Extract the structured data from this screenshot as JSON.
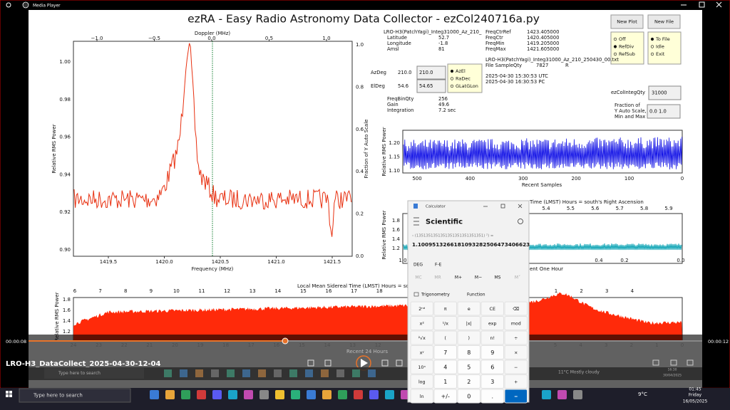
{
  "window": {
    "title": "Media Player"
  },
  "app": {
    "title": "ezRA - Easy Radio Astronomy Data Collector - ezCol240716a.py",
    "new_plot": "New Plot",
    "new_file": "New File",
    "ref_options": [
      "Off",
      "RefDiv",
      "RefSub"
    ],
    "file_options": [
      "To File",
      "Idle",
      "Exit"
    ],
    "coord_options": [
      "AzEl",
      "RaDec",
      "GLatGLon"
    ],
    "station_name": "LRO-H3(PatchYagi)_Integ31000_Az_210_",
    "station_rows": [
      [
        "Latitude",
        "52.7"
      ],
      [
        "Longitude",
        "-1.8"
      ],
      [
        "Amsl",
        "81"
      ]
    ],
    "freq_rows": [
      [
        "FreqCtrRef",
        "1423.405000"
      ],
      [
        "FreqCtr",
        "1420.405000"
      ],
      [
        "FreqMin",
        "1419.205000"
      ],
      [
        "FreqMax",
        "1421.605000"
      ]
    ],
    "file_name": "LRO-H3(PatchYagi)_Integ31000_Az_210_250430_00.txt",
    "file_sample": [
      "File SampleQty",
      "7827",
      "R"
    ],
    "az": [
      "AzDeg",
      "210.0",
      "210.0"
    ],
    "el": [
      "ElDeg",
      "54.6",
      "54.65"
    ],
    "times": [
      "2025-04-30  15:30:53  UTC",
      "2025-04-30  16:30:53  PC"
    ],
    "integ_label": "ezColIntegQty",
    "integ_value": "31000",
    "settings": [
      [
        "FreqBinQty",
        "256"
      ],
      [
        "Gain",
        "49.6"
      ],
      [
        "Integration",
        "7.2  sec"
      ]
    ],
    "yscale_label": [
      "Fraction of",
      "Y Auto Scale,",
      "Min and Max"
    ],
    "yscale_value": "0.0   1.0",
    "spectrum": {
      "top_label": "Doppler (MHz)",
      "top_ticks": [
        "−1.0",
        "−0.5",
        "0.0",
        "0.5",
        "1.0"
      ],
      "y_label": "Relative RMS Power",
      "y_ticks": [
        "0.90",
        "0.92",
        "0.94",
        "0.96",
        "0.98",
        "1.00"
      ],
      "y2_label": "Fraction of Y Auto Scale",
      "y2_ticks": [
        "0.0",
        "0.2",
        "0.4",
        "0.6",
        "0.8",
        "1.0"
      ],
      "x_label": "Frequency (MHz)",
      "x_ticks": [
        "1419.5",
        "1420.0",
        "1420.5",
        "1421.0",
        "1421.5"
      ]
    },
    "samples": {
      "y_label": "Relative RMS Power",
      "y_ticks": [
        "1.10",
        "1.15",
        "1.20"
      ],
      "x_label": "Recent Samples",
      "x_ticks": [
        "500",
        "400",
        "300",
        "200",
        "100",
        "0"
      ]
    },
    "hour": {
      "top_label": "Time (LMST) Hours = south's Right Ascension",
      "top_ticks": [
        "5.4",
        "5.5",
        "5.6",
        "5.7",
        "5.8",
        "5.9"
      ],
      "y_label": "Relative RMS Power",
      "y_ticks": [
        "1.2",
        "1.4",
        "1.6",
        "1.8"
      ],
      "x_label": "ent One Hour",
      "x_ticks": [
        "1.0",
        "0.4",
        "0.2",
        "0.0"
      ]
    },
    "day": {
      "top_label": "Local Mean Sidereal Time (LMST) Hours = so",
      "top_ticks_left": [
        "6",
        "7",
        "8",
        "9",
        "10",
        "11",
        "12",
        "13",
        "14",
        "15",
        "16",
        "17",
        "18"
      ],
      "top_ticks_right": [
        "1",
        "2",
        "3",
        "4"
      ],
      "y_label": "Relative RMS Power",
      "y_ticks": [
        "1.2",
        "1.4",
        "1.6",
        "1.8"
      ],
      "x_label": "Recent 24 Hours",
      "x_ticks_left": [
        "24",
        "23",
        "22",
        "21",
        "20",
        "19",
        "18",
        "17",
        "16",
        "15",
        "14",
        "13",
        "12"
      ],
      "x_ticks_right": [
        "5",
        "4",
        "3",
        "2",
        "1",
        "0"
      ]
    }
  },
  "calculator": {
    "title": "Calculator",
    "mode": "Scientific",
    "expression": "‹ (1351351351351351351351351351) ²) =",
    "result": "1.1009513266181093282506473406623",
    "angle": "DEG",
    "fe": "F-E",
    "memory": [
      "MC",
      "MR",
      "M+",
      "M−",
      "MS",
      "M˅"
    ],
    "trig": "Trigonometry",
    "function": "Function",
    "keys": [
      [
        "2ⁿᵈ",
        "π",
        "e",
        "CE",
        "⌫"
      ],
      [
        "x²",
        "¹/x",
        "|x|",
        "exp",
        "mod"
      ],
      [
        "²√x",
        "(",
        ")",
        "n!",
        "÷"
      ],
      [
        "xʸ",
        "7",
        "8",
        "9",
        "×"
      ],
      [
        "10ˣ",
        "4",
        "5",
        "6",
        "−"
      ],
      [
        "log",
        "1",
        "2",
        "3",
        "+"
      ],
      [
        "ln",
        "+/-",
        "0",
        ".",
        "="
      ]
    ]
  },
  "player": {
    "elapsed": "00:00:08",
    "total": "00:00:12",
    "file": "LRO-H3_DataCollect_2025-04-30-12-04"
  },
  "inner_taskbar": {
    "search": "Type here to search",
    "weather": "11°C  Mostly cloudy",
    "time": "16:30",
    "date": "30/04/2025"
  },
  "taskbar": {
    "search": "Type here to search",
    "weather": "9°C",
    "time": "01:45",
    "day": "Friday",
    "date": "16/05/2025"
  }
}
